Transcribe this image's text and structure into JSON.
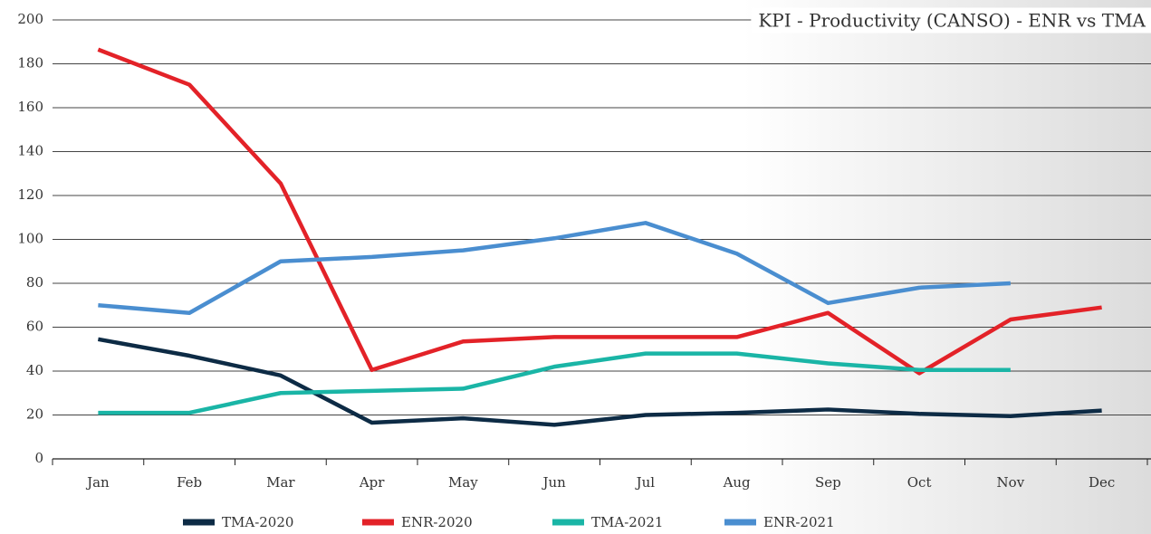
{
  "chart_data": {
    "type": "line",
    "title": "KPI - Productivity (CANSO) - ENR vs TMA",
    "categories": [
      "Jan",
      "Feb",
      "Mar",
      "Apr",
      "May",
      "Jun",
      "Jul",
      "Aug",
      "Sep",
      "Oct",
      "Nov",
      "Dec"
    ],
    "series": [
      {
        "name": "TMA-2020",
        "color": "#0d2b45",
        "values": [
          54.5,
          47,
          38,
          16.5,
          18.5,
          15.5,
          20,
          21,
          22.5,
          20.5,
          19.5,
          22
        ]
      },
      {
        "name": "ENR-2020",
        "color": "#e32228",
        "values": [
          186.5,
          170.5,
          125.5,
          40.5,
          53.5,
          55.5,
          55.5,
          55.5,
          66.5,
          39,
          63.5,
          69
        ]
      },
      {
        "name": "TMA-2021",
        "color": "#1ab5a6",
        "values": [
          21,
          21,
          30,
          31,
          32,
          42,
          48,
          48,
          43.5,
          40.5,
          40.5,
          null
        ]
      },
      {
        "name": "ENR-2021",
        "color": "#4a8ed0",
        "values": [
          70,
          66.5,
          90,
          92,
          95,
          100.5,
          107.5,
          93.5,
          71,
          78,
          80,
          null
        ]
      }
    ],
    "ylim": [
      0,
      200
    ],
    "yticks": [
      0,
      20,
      40,
      60,
      80,
      100,
      120,
      140,
      160,
      180,
      200
    ],
    "grid": true,
    "legend": "bottom"
  }
}
